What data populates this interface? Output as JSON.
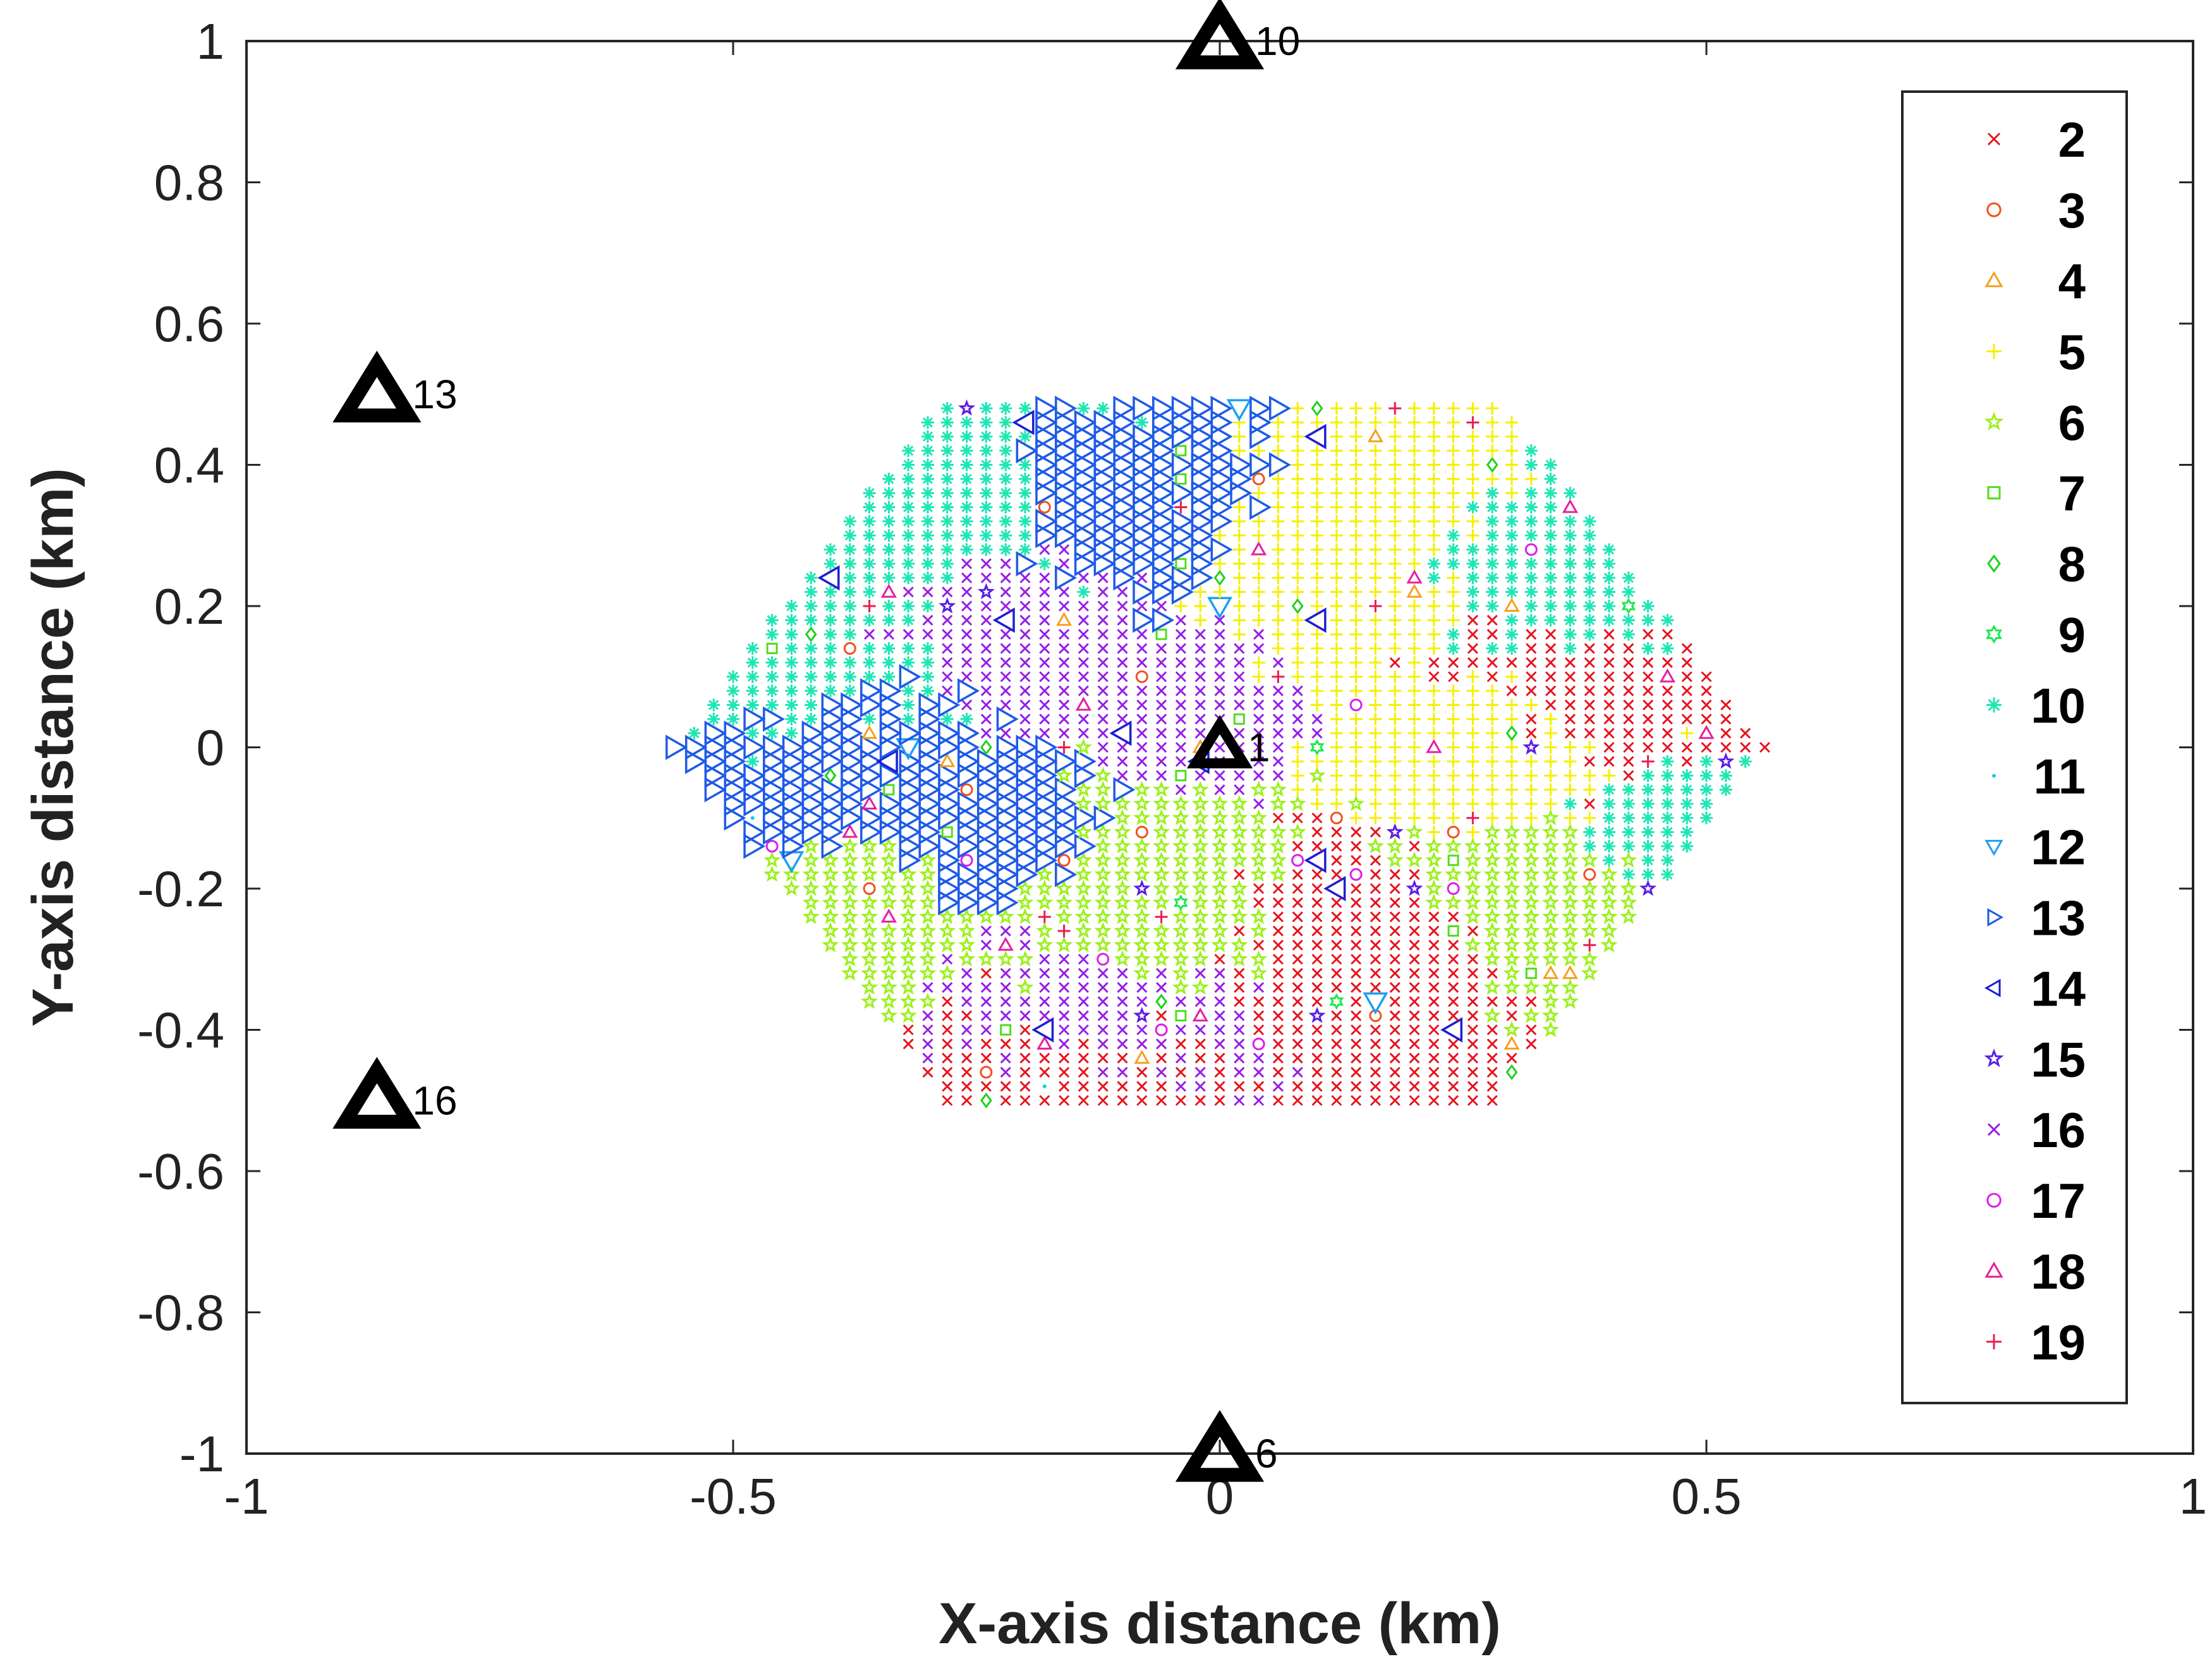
{
  "chart_data": {
    "type": "scatter",
    "xlabel": "X-axis distance (km)",
    "ylabel": "Y-axis distance (km)",
    "xlim": [
      -1,
      1
    ],
    "ylim": [
      -1,
      1
    ],
    "x_ticks": [
      -1,
      -0.5,
      0,
      0.5,
      1
    ],
    "x_tick_labels": [
      "-1",
      "-0.5",
      "0",
      "0.5",
      "1"
    ],
    "y_ticks": [
      1,
      0.8,
      0.6,
      0.4,
      0.2,
      0,
      -0.2,
      -0.4,
      -0.6,
      -0.8,
      -1
    ],
    "y_tick_labels": [
      "1",
      "0.8",
      "0.6",
      "0.4",
      "0.2",
      "0",
      "-0.2",
      "-0.4",
      "-0.6",
      "-0.8",
      "-1"
    ],
    "grid": false,
    "legend_position": "right",
    "stations": [
      {
        "label": "10",
        "x": 0.0,
        "y": 1.0
      },
      {
        "label": "13",
        "x": -0.866,
        "y": 0.5
      },
      {
        "label": "16",
        "x": -0.866,
        "y": -0.5
      },
      {
        "label": "6",
        "x": 0.0,
        "y": -1.0
      },
      {
        "label": "1",
        "x": 0.0,
        "y": 0.0
      }
    ],
    "series": [
      {
        "name": "2",
        "marker": "x-mark",
        "color": "#e6141e"
      },
      {
        "name": "3",
        "marker": "circle",
        "color": "#f0501e"
      },
      {
        "name": "4",
        "marker": "triangle-up",
        "color": "#f5a01e"
      },
      {
        "name": "5",
        "marker": "plus",
        "color": "#f5f000"
      },
      {
        "name": "6",
        "marker": "star5",
        "color": "#9cf01e"
      },
      {
        "name": "7",
        "marker": "square",
        "color": "#50dc1e"
      },
      {
        "name": "8",
        "marker": "diamond",
        "color": "#1ed21e"
      },
      {
        "name": "9",
        "marker": "hexagram",
        "color": "#1ee650"
      },
      {
        "name": "10",
        "marker": "asterisk",
        "color": "#1ee6b4"
      },
      {
        "name": "11",
        "marker": "point",
        "color": "#1ec8e6"
      },
      {
        "name": "12",
        "marker": "triangle-down",
        "color": "#1ea0f0"
      },
      {
        "name": "13",
        "marker": "triangle-right",
        "color": "#1e5ae6"
      },
      {
        "name": "14",
        "marker": "triangle-left",
        "color": "#1e1ed2"
      },
      {
        "name": "15",
        "marker": "star5",
        "color": "#5a1ee6"
      },
      {
        "name": "16",
        "marker": "x-mark",
        "color": "#961ee6"
      },
      {
        "name": "17",
        "marker": "circle",
        "color": "#dc1ee6"
      },
      {
        "name": "18",
        "marker": "triangle-up",
        "color": "#e61ea0"
      },
      {
        "name": "19",
        "marker": "plus",
        "color": "#e61e50"
      }
    ],
    "scatter_region": {
      "x_min": -0.56,
      "x_max": 0.56,
      "y_min": -0.5,
      "y_max": 0.48,
      "x_step": 0.02,
      "y_step": 0.02
    },
    "dominant_regions": [
      {
        "series": "10",
        "x": -0.28,
        "y": 0.32,
        "weight": 3
      },
      {
        "series": "16",
        "x": -0.22,
        "y": 0.22,
        "weight": 2
      },
      {
        "series": "13",
        "x": -0.12,
        "y": 0.34,
        "weight": 2
      },
      {
        "series": "10",
        "x": 0.36,
        "y": 0.25,
        "weight": 2
      },
      {
        "series": "5",
        "x": 0.12,
        "y": 0.25,
        "weight": 2
      },
      {
        "series": "2",
        "x": 0.38,
        "y": 0.08,
        "weight": 2
      },
      {
        "series": "5",
        "x": 0.3,
        "y": -0.02,
        "weight": 2
      },
      {
        "series": "6",
        "x": 0.32,
        "y": -0.2,
        "weight": 2
      },
      {
        "series": "2",
        "x": 0.16,
        "y": -0.3,
        "weight": 2
      },
      {
        "series": "6",
        "x": -0.1,
        "y": -0.24,
        "weight": 2
      },
      {
        "series": "16",
        "x": -0.12,
        "y": -0.38,
        "weight": 2
      },
      {
        "series": "2",
        "x": -0.14,
        "y": -0.46,
        "weight": 2
      },
      {
        "series": "13",
        "x": -0.42,
        "y": -0.04,
        "weight": 2
      },
      {
        "series": "6",
        "x": -0.4,
        "y": -0.22,
        "weight": 2
      },
      {
        "series": "10",
        "x": -0.46,
        "y": 0.12,
        "weight": 2
      },
      {
        "series": "16",
        "x": -0.04,
        "y": 0.08,
        "weight": 1
      },
      {
        "series": "13",
        "x": -0.24,
        "y": -0.14,
        "weight": 1
      },
      {
        "series": "5",
        "x": 0.22,
        "y": 0.42,
        "weight": 1
      },
      {
        "series": "10",
        "x": 0.44,
        "y": -0.12,
        "weight": 1
      }
    ]
  }
}
